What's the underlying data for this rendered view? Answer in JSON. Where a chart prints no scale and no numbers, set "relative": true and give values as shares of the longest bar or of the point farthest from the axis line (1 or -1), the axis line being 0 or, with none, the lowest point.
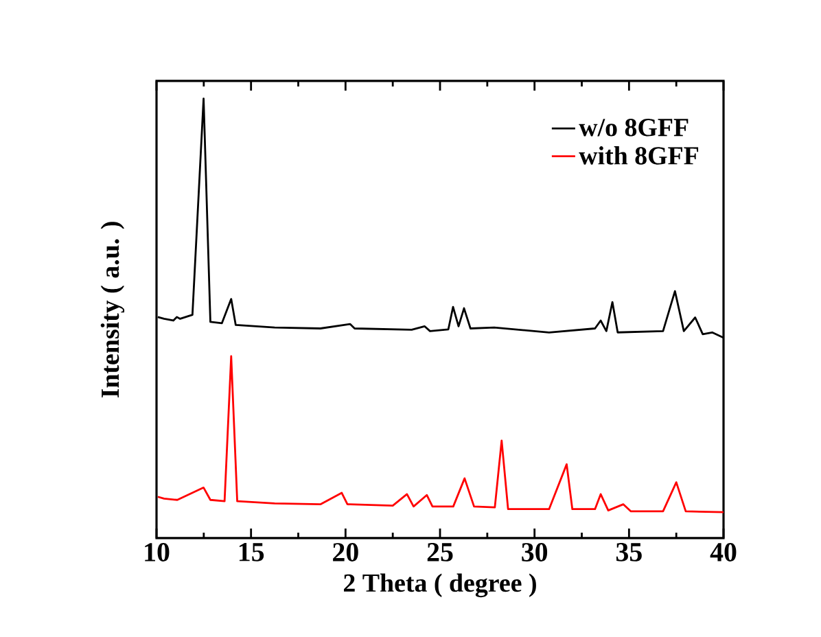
{
  "chart_data": {
    "type": "line",
    "xlabel": "2 Theta ( degree )",
    "ylabel": "Intensity ( a.u. )",
    "relative": true,
    "xlim": [
      10,
      40
    ],
    "xticks": [
      10,
      15,
      20,
      25,
      30,
      35,
      40
    ],
    "tick_labels": "x",
    "legend": "top right",
    "marker": "none",
    "line_style": "solid",
    "series": [
      {
        "name": "w/o 8GFF",
        "color": "#000000",
        "x": [
          10.07,
          10.4,
          10.89,
          11.08,
          11.25,
          11.9,
          12.49,
          12.85,
          13.46,
          13.95,
          14.19,
          16.25,
          18.67,
          20.24,
          20.48,
          23.5,
          24.18,
          24.47,
          25.44,
          25.69,
          25.98,
          26.27,
          26.61,
          27.87,
          30.77,
          33.2,
          33.5,
          33.8,
          34.12,
          34.4,
          36.8,
          37.43,
          37.9,
          38.5,
          38.9,
          39.4,
          40.0
        ],
        "values": [
          0.503,
          0.499,
          0.495,
          0.503,
          0.499,
          0.508,
          1.0,
          0.492,
          0.489,
          0.544,
          0.485,
          0.479,
          0.477,
          0.487,
          0.477,
          0.474,
          0.482,
          0.471,
          0.475,
          0.526,
          0.482,
          0.523,
          0.477,
          0.479,
          0.468,
          0.477,
          0.495,
          0.471,
          0.537,
          0.468,
          0.471,
          0.562,
          0.471,
          0.502,
          0.464,
          0.468,
          0.456
        ]
      },
      {
        "name": "with 8GFF",
        "color": "#ff0000",
        "x": [
          10.07,
          10.4,
          11.1,
          12.49,
          12.85,
          13.6,
          13.95,
          14.27,
          16.25,
          18.67,
          19.8,
          20.1,
          22.5,
          23.25,
          23.6,
          24.3,
          24.6,
          25.7,
          26.3,
          26.8,
          27.9,
          28.26,
          28.6,
          30.77,
          31.7,
          32.0,
          33.2,
          33.5,
          33.9,
          34.7,
          35.1,
          36.8,
          37.5,
          38.0,
          40.0
        ],
        "values": [
          0.094,
          0.09,
          0.087,
          0.115,
          0.087,
          0.084,
          0.414,
          0.084,
          0.079,
          0.077,
          0.103,
          0.077,
          0.074,
          0.1,
          0.072,
          0.098,
          0.072,
          0.072,
          0.136,
          0.072,
          0.07,
          0.222,
          0.066,
          0.066,
          0.168,
          0.066,
          0.066,
          0.1,
          0.063,
          0.077,
          0.061,
          0.061,
          0.127,
          0.061,
          0.059
        ]
      }
    ]
  }
}
